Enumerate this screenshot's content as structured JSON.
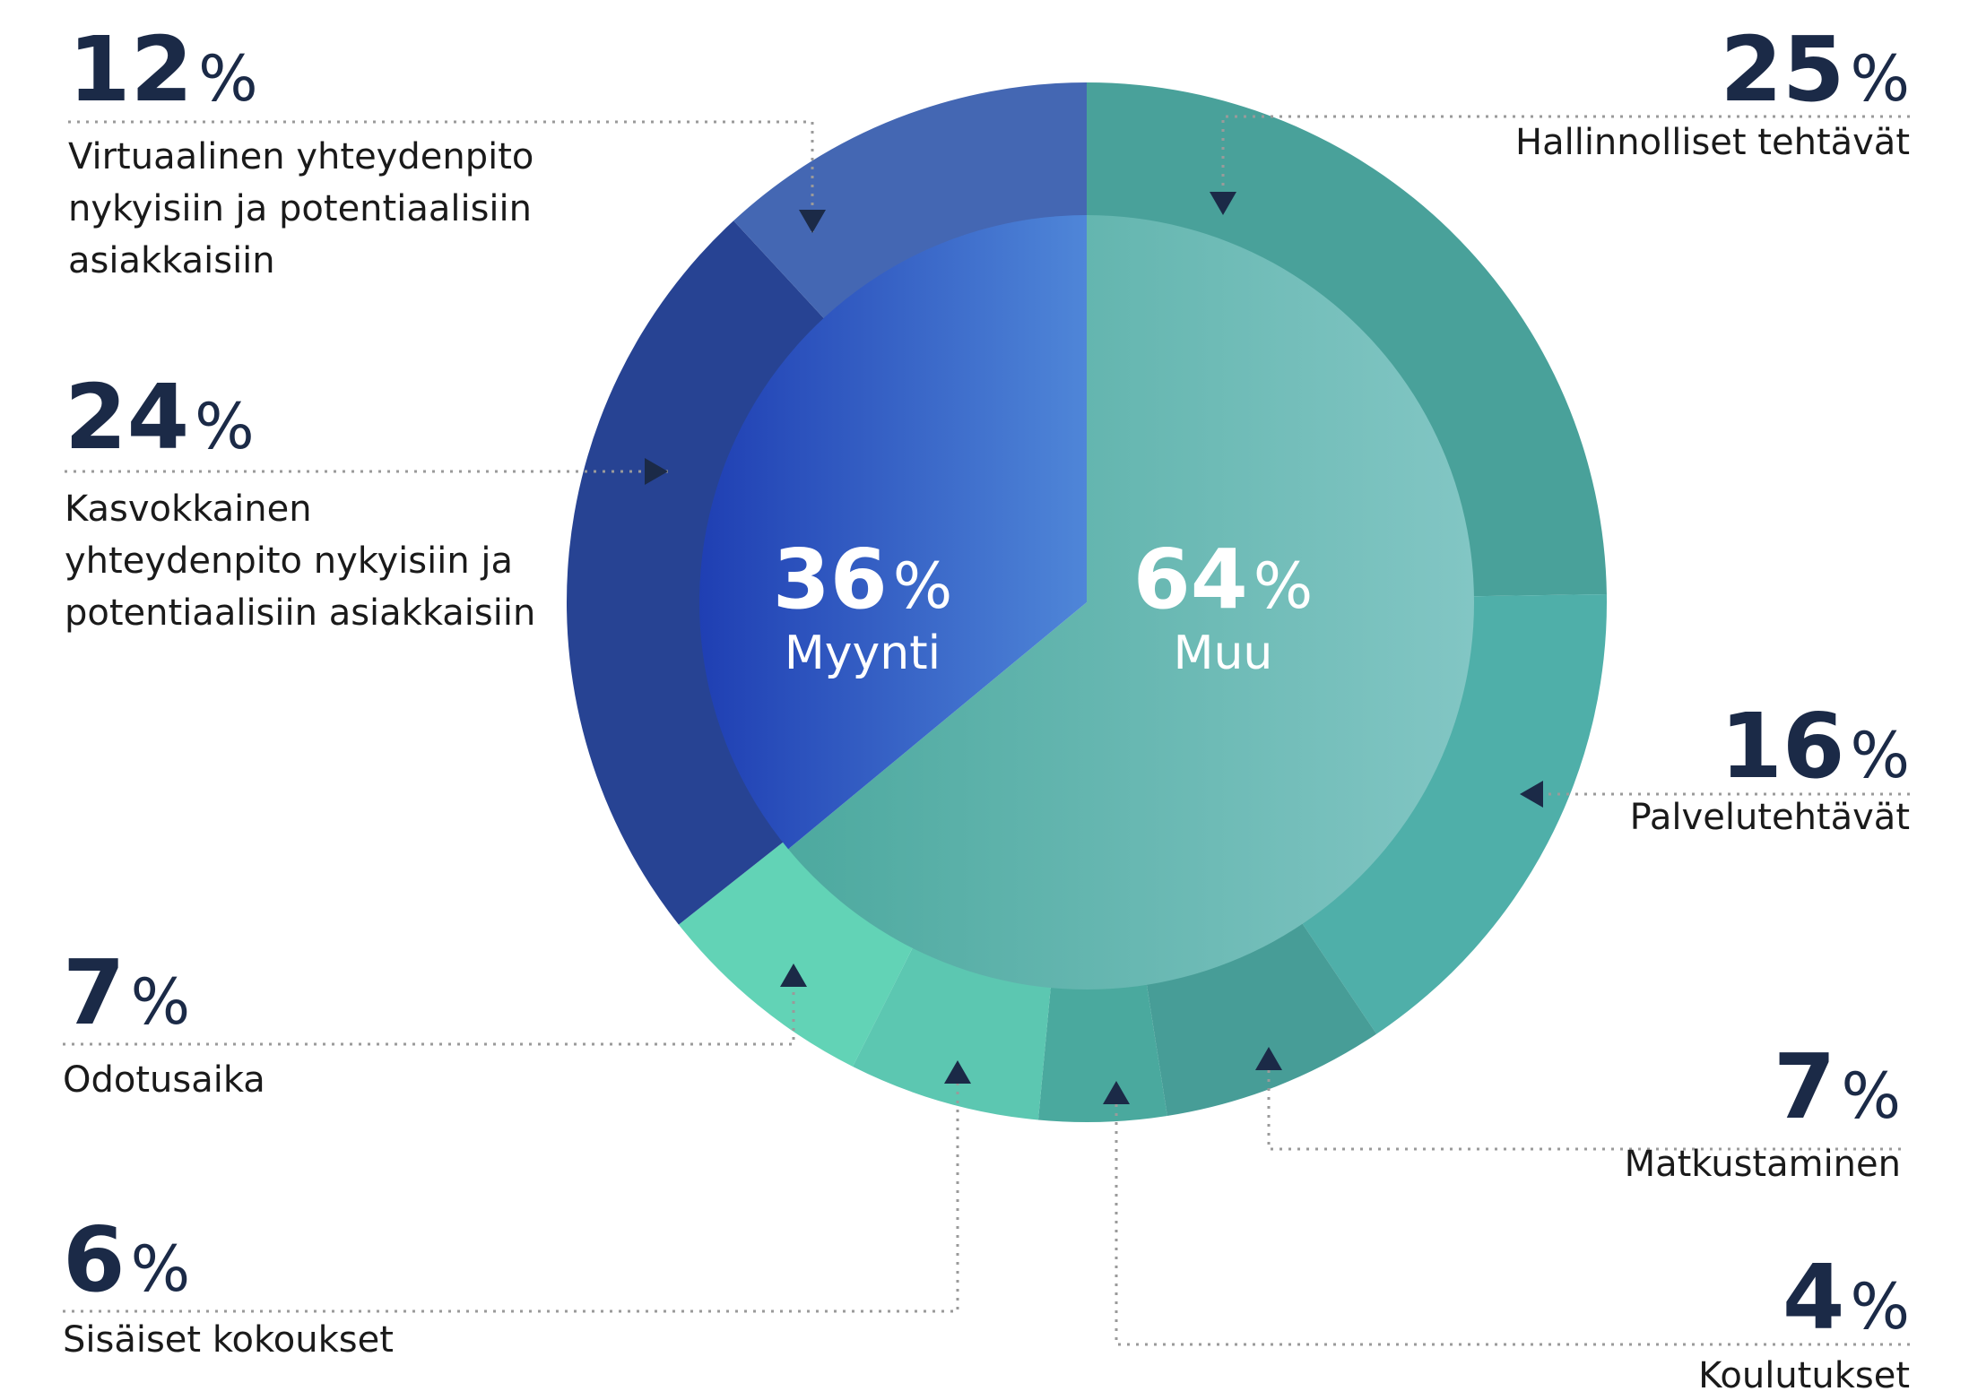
{
  "chart_data": {
    "type": "pie",
    "inner": {
      "categories": [
        "Myynti",
        "Muu"
      ],
      "values": [
        36,
        64
      ],
      "labels": [
        "36%",
        "64%"
      ],
      "colors": [
        "#2f56c6",
        "#5fb8b3"
      ]
    },
    "outer": {
      "segments": [
        {
          "group": "Muu",
          "value": 25,
          "pct_number": "25",
          "pct_sign": "%",
          "label_lines": [
            "Hallinnolliset tehtävät"
          ],
          "color": "#49a19a"
        },
        {
          "group": "Muu",
          "value": 16,
          "pct_number": "16",
          "pct_sign": "%",
          "label_lines": [
            "Palvelutehtävät"
          ],
          "color": "#4fafa9"
        },
        {
          "group": "Muu",
          "value": 7,
          "pct_number": "7",
          "pct_sign": "%",
          "label_lines": [
            "Matkustaminen"
          ],
          "color": "#479d97"
        },
        {
          "group": "Muu",
          "value": 4,
          "pct_number": "4",
          "pct_sign": "%",
          "label_lines": [
            "Koulutukset"
          ],
          "color": "#4aa99e"
        },
        {
          "group": "Muu",
          "value": 6,
          "pct_number": "6",
          "pct_sign": "%",
          "label_lines": [
            "Sisäiset kokoukset"
          ],
          "color": "#5cc7b1"
        },
        {
          "group": "Muu",
          "value": 7,
          "pct_number": "7",
          "pct_sign": "%",
          "label_lines": [
            "Odotusaika"
          ],
          "color": "#62d3b6"
        },
        {
          "group": "Myynti",
          "value": 24,
          "pct_number": "24",
          "pct_sign": "%",
          "label_lines": [
            "Kasvokkainen",
            "yhteydenpito nykyisiin ja",
            "potentiaalisiin asiakkaisiin"
          ],
          "color": "#274393"
        },
        {
          "group": "Myynti",
          "value": 12,
          "pct_number": "12",
          "pct_sign": "%",
          "label_lines": [
            "Virtuaalinen yhteydenpito",
            "nykyisiin ja potentiaalisiin",
            "asiakkaisiin"
          ],
          "color": "#4467b3"
        }
      ]
    },
    "center_labels": [
      {
        "pct_number": "36",
        "pct_sign": "%",
        "name": "Myynti"
      },
      {
        "pct_number": "64",
        "pct_sign": "%",
        "name": "Muu"
      }
    ]
  }
}
